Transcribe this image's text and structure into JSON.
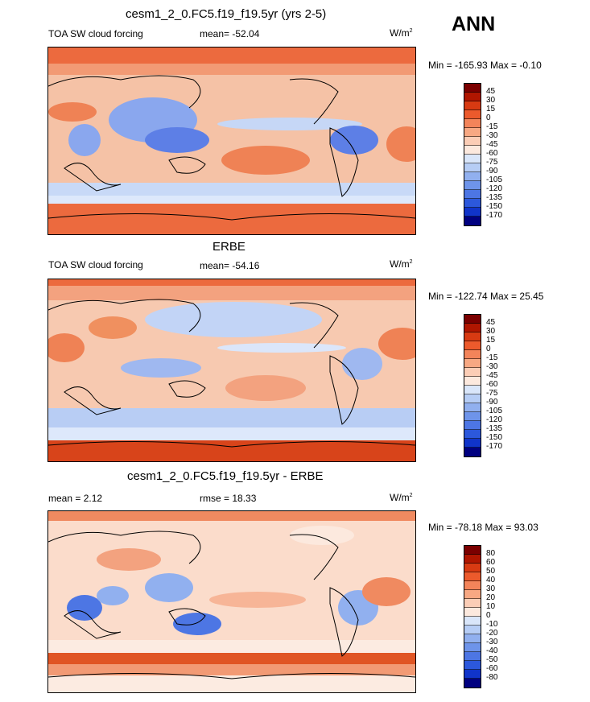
{
  "season": "ANN",
  "panels": [
    {
      "title": "cesm1_2_0.FC5.f19_f19.5yr (yrs 2-5)",
      "left_label": "TOA SW cloud forcing",
      "stat_label": "mean= -52.04",
      "units": "W/m",
      "units_sup": "2",
      "minmax": "Min = -165.93 Max =  -0.10",
      "colorbar": {
        "labels": [
          "45",
          "30",
          "15",
          "0",
          "-15",
          "-30",
          "-45",
          "-60",
          "-75",
          "-90",
          "-105",
          "-120",
          "-135",
          "-150",
          "-170"
        ],
        "colors": [
          "#7b0000",
          "#b01600",
          "#d83a12",
          "#ec5a2c",
          "#f3845a",
          "#f7a883",
          "#fbcdb6",
          "#fce9de",
          "#d9e6fa",
          "#b6cdf5",
          "#91b0ef",
          "#6e94ea",
          "#4d76e4",
          "#2c58dc",
          "#1034ca",
          "#000080"
        ]
      }
    },
    {
      "title": "ERBE",
      "left_label": "TOA SW cloud forcing",
      "stat_label": "mean= -54.16",
      "units": "W/m",
      "units_sup": "2",
      "minmax": "Min = -122.74 Max =  25.45",
      "colorbar": {
        "labels": [
          "45",
          "30",
          "15",
          "0",
          "-15",
          "-30",
          "-45",
          "-60",
          "-75",
          "-90",
          "-105",
          "-120",
          "-135",
          "-150",
          "-170"
        ],
        "colors": [
          "#7b0000",
          "#b01600",
          "#d83a12",
          "#ec5a2c",
          "#f3845a",
          "#f7a883",
          "#fbcdb6",
          "#fce9de",
          "#d9e6fa",
          "#b6cdf5",
          "#91b0ef",
          "#6e94ea",
          "#4d76e4",
          "#2c58dc",
          "#1034ca",
          "#000080"
        ]
      }
    },
    {
      "title": "cesm1_2_0.FC5.f19_f19.5yr - ERBE",
      "left_label": "mean =   2.12",
      "stat_label": "rmse =  18.33",
      "units": "W/m",
      "units_sup": "2",
      "minmax": "Min = -78.18 Max =  93.03",
      "colorbar": {
        "labels": [
          "80",
          "60",
          "50",
          "40",
          "30",
          "20",
          "10",
          "0",
          "-10",
          "-20",
          "-30",
          "-40",
          "-50",
          "-60",
          "-80"
        ],
        "colors": [
          "#7b0000",
          "#b01600",
          "#d83a12",
          "#ec5a2c",
          "#f3845a",
          "#f7a883",
          "#fbcdb6",
          "#fce9de",
          "#d9e6fa",
          "#b6cdf5",
          "#91b0ef",
          "#6e94ea",
          "#4d76e4",
          "#2c58dc",
          "#1034ca",
          "#000080"
        ]
      }
    }
  ]
}
